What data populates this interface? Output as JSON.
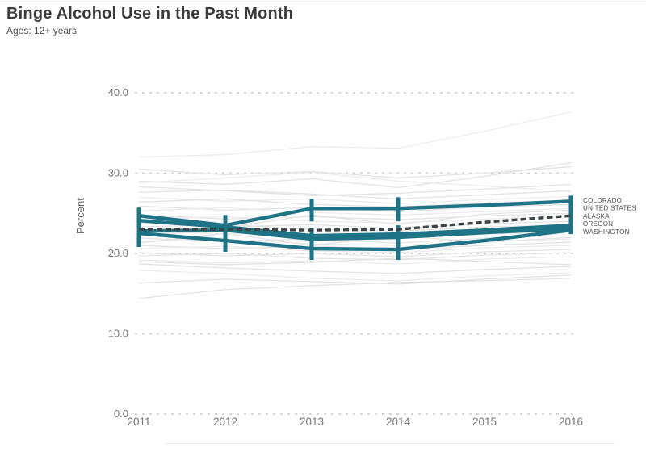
{
  "header": {
    "title": "Binge Alcohol Use in the Past Month",
    "subtitle": "Ages: 12+ years"
  },
  "chart_data": {
    "type": "line",
    "title": "Binge Alcohol Use in the Past Month",
    "subtitle": "Ages: 12+ years",
    "xlabel": "",
    "ylabel": "Percent",
    "x": [
      2011,
      2012,
      2013,
      2014,
      2015,
      2016
    ],
    "x_tick_labels": [
      "2011",
      "2012",
      "2013",
      "2014",
      "2015",
      "2016"
    ],
    "yticks": [
      0,
      10,
      20,
      30,
      40
    ],
    "ytick_labels": [
      "0.0",
      "10.0",
      "20.0",
      "30.0",
      "40.0"
    ],
    "ylim": [
      0,
      42
    ],
    "grid": "dashed-horizontal",
    "legend_position": "right-margin",
    "colors": {
      "highlight": "#1E7387",
      "national_dashed": "#3D4447",
      "background_line": "#E3E3E3",
      "background_line_light": "#ECECEC",
      "gridline": "#C8C8C8",
      "tick_text": "#757575"
    },
    "series": [
      {
        "name": "COLORADO",
        "style": "solid",
        "color": "#1E7387",
        "values": [
          24.7,
          23.5,
          25.6,
          25.6,
          26.0,
          26.5
        ]
      },
      {
        "name": "UNITED STATES",
        "style": "dashed",
        "color": "#3D4447",
        "values": [
          23.0,
          23.0,
          22.9,
          23.0,
          23.9,
          24.7
        ]
      },
      {
        "name": "ALASKA",
        "style": "solid",
        "color": "#1E7387",
        "values": [
          24.1,
          23.3,
          22.2,
          22.4,
          22.9,
          23.5
        ]
      },
      {
        "name": "OREGON",
        "style": "solid",
        "color": "#1E7387",
        "values": [
          22.8,
          22.9,
          21.8,
          22.0,
          22.6,
          23.1
        ]
      },
      {
        "name": "WASHINGTON",
        "style": "solid",
        "color": "#1E7387",
        "values": [
          22.5,
          21.6,
          20.6,
          20.5,
          21.6,
          22.9
        ]
      }
    ],
    "error_bars": [
      {
        "x": 2011,
        "lo": 20.8,
        "hi": 25.7
      },
      {
        "x": 2012,
        "lo": 20.2,
        "hi": 24.8
      },
      {
        "x": 2013,
        "lo": 24.0,
        "hi": 26.8
      },
      {
        "x": 2013,
        "lo": 19.2,
        "hi": 23.2
      },
      {
        "x": 2014,
        "lo": 24.0,
        "hi": 27.0
      },
      {
        "x": 2014,
        "lo": 19.2,
        "hi": 23.5
      },
      {
        "x": 2016,
        "lo": 22.4,
        "hi": 27.2
      }
    ],
    "background_series": [
      [
        32.0,
        32.3,
        33.3,
        33.1,
        35.2,
        37.6
      ],
      [
        30.5,
        29.8,
        30.2,
        29.4,
        30.0,
        30.8
      ],
      [
        29.0,
        28.6,
        29.3,
        28.2,
        29.6,
        31.3
      ],
      [
        28.8,
        29.4,
        30.1,
        29.0,
        28.4,
        27.7
      ],
      [
        28.3,
        27.8,
        27.2,
        27.5,
        28.0,
        28.6
      ],
      [
        27.6,
        27.9,
        27.4,
        26.8,
        27.3,
        27.8
      ],
      [
        27.0,
        26.5,
        26.8,
        26.2,
        26.7,
        27.1
      ],
      [
        26.4,
        26.8,
        26.1,
        25.8,
        26.3,
        26.6
      ],
      [
        25.9,
        25.4,
        25.7,
        25.2,
        25.8,
        26.1
      ],
      [
        25.3,
        25.7,
        25.1,
        24.8,
        25.2,
        25.6
      ],
      [
        24.8,
        24.3,
        24.6,
        24.2,
        24.7,
        25.0
      ],
      [
        24.5,
        23.2,
        24.8,
        23.6,
        24.9,
        25.4
      ],
      [
        24.2,
        24.6,
        24.0,
        23.8,
        24.3,
        24.6
      ],
      [
        23.8,
        23.3,
        23.6,
        23.1,
        23.7,
        24.0
      ],
      [
        23.3,
        23.6,
        23.0,
        22.8,
        23.3,
        23.5
      ],
      [
        22.8,
        22.4,
        22.7,
        22.2,
        22.8,
        23.1
      ],
      [
        22.4,
        22.7,
        22.1,
        21.9,
        22.4,
        22.7
      ],
      [
        21.9,
        21.5,
        21.8,
        21.3,
        21.9,
        22.2
      ],
      [
        21.5,
        21.8,
        21.2,
        21.0,
        21.5,
        21.8
      ],
      [
        21.3,
        22.5,
        21.0,
        22.2,
        21.4,
        22.0
      ],
      [
        21.0,
        20.6,
        20.9,
        20.5,
        21.0,
        21.4
      ],
      [
        20.6,
        20.9,
        20.3,
        20.1,
        20.7,
        21.0
      ],
      [
        20.1,
        19.7,
        20.0,
        19.6,
        20.2,
        20.5
      ],
      [
        19.7,
        20.0,
        19.4,
        19.2,
        19.8,
        20.1
      ],
      [
        19.2,
        18.8,
        19.1,
        18.7,
        19.3,
        19.6
      ],
      [
        19.0,
        18.6,
        18.9,
        19.4,
        19.0,
        18.6
      ],
      [
        18.7,
        18.2,
        17.8,
        17.5,
        18.0,
        18.4
      ],
      [
        17.9,
        17.5,
        16.9,
        16.6,
        17.2,
        17.6
      ],
      [
        16.3,
        16.8,
        16.5,
        16.2,
        16.8,
        17.3
      ],
      [
        14.4,
        15.5,
        16.0,
        16.4,
        16.6,
        16.9
      ]
    ]
  }
}
